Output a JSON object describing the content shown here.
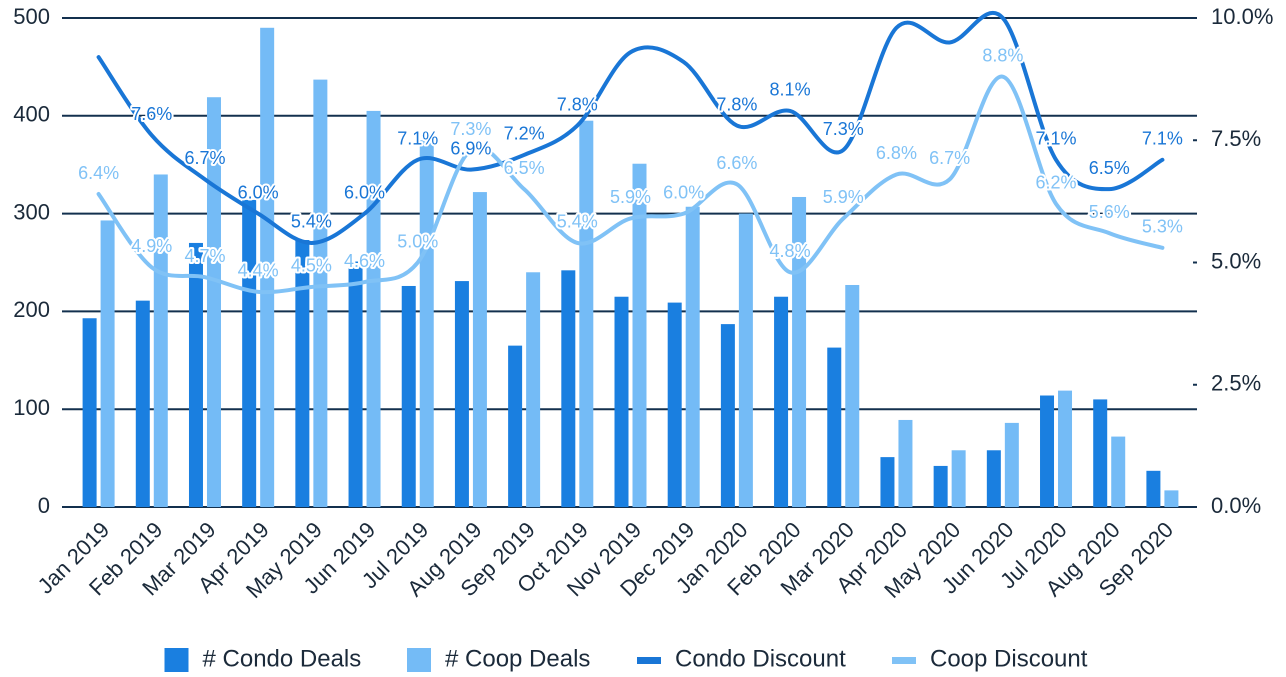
{
  "chart_data": {
    "type": "bar",
    "categories": [
      "Jan 2019",
      "Feb 2019",
      "Mar 2019",
      "Apr 2019",
      "May 2019",
      "Jun 2019",
      "Jul 2019",
      "Aug 2019",
      "Sep 2019",
      "Oct 2019",
      "Nov 2019",
      "Dec 2019",
      "Jan 2020",
      "Feb 2020",
      "Mar 2020",
      "Apr 2020",
      "May 2020",
      "Jun 2020",
      "Jul 2020",
      "Aug 2020",
      "Sep 2020"
    ],
    "series": [
      {
        "name": "# Condo Deals",
        "type": "bar",
        "color": "#1a7fe0",
        "values": [
          193,
          211,
          270,
          314,
          273,
          251,
          226,
          231,
          165,
          242,
          215,
          209,
          187,
          215,
          163,
          51,
          42,
          58,
          114,
          110,
          37
        ]
      },
      {
        "name": "# Coop Deals",
        "type": "bar",
        "color": "#74bbf6",
        "values": [
          293,
          340,
          419,
          490,
          437,
          405,
          375,
          322,
          240,
          395,
          351,
          307,
          300,
          317,
          227,
          89,
          58,
          86,
          119,
          72,
          17
        ]
      },
      {
        "name": "Condo Discount",
        "type": "line",
        "axis": "y2",
        "color": "#1976d6",
        "values": [
          9.2,
          7.6,
          6.7,
          6.0,
          5.4,
          6.0,
          7.1,
          6.9,
          7.2,
          7.8,
          9.3,
          9.1,
          7.8,
          8.1,
          7.3,
          9.8,
          9.5,
          10.0,
          7.1,
          6.5,
          7.1
        ],
        "value_labels": [
          null,
          "7.6%",
          "6.7%",
          "6.0%",
          "5.4%",
          "6.0%",
          "7.1%",
          "6.9%",
          "7.2%",
          "7.8%",
          null,
          null,
          "7.8%",
          "8.1%",
          "7.3%",
          null,
          null,
          null,
          "7.1%",
          "6.5%",
          "7.1%"
        ]
      },
      {
        "name": "Coop Discount",
        "type": "line",
        "axis": "y2",
        "color": "#80c2f6",
        "values": [
          6.4,
          4.9,
          4.7,
          4.4,
          4.5,
          4.6,
          5.0,
          7.3,
          6.5,
          5.4,
          5.9,
          6.0,
          6.6,
          4.8,
          5.9,
          6.8,
          6.7,
          8.8,
          6.2,
          5.6,
          5.3
        ],
        "value_labels": [
          "6.4%",
          "4.9%",
          "4.7%",
          "4.4%",
          "4.5%",
          "4.6%",
          "5.0%",
          "7.3%",
          "6.5%",
          "5.4%",
          "5.9%",
          "6.0%",
          "6.6%",
          "4.8%",
          "5.9%",
          "6.8%",
          "6.7%",
          "8.8%",
          "6.2%",
          "5.6%",
          "5.3%"
        ]
      }
    ],
    "ylim": [
      0,
      500
    ],
    "yticks": [
      0,
      100,
      200,
      300,
      400,
      500
    ],
    "y2lim": [
      0,
      10
    ],
    "y2ticks": [
      {
        "value": 0,
        "label": "0.0%"
      },
      {
        "value": 2.5,
        "label": "2.5%"
      },
      {
        "value": 5,
        "label": "5.0%"
      },
      {
        "value": 7.5,
        "label": "7.5%"
      },
      {
        "value": 10,
        "label": "10.0%"
      }
    ],
    "grid": true,
    "legend": "bottom"
  }
}
